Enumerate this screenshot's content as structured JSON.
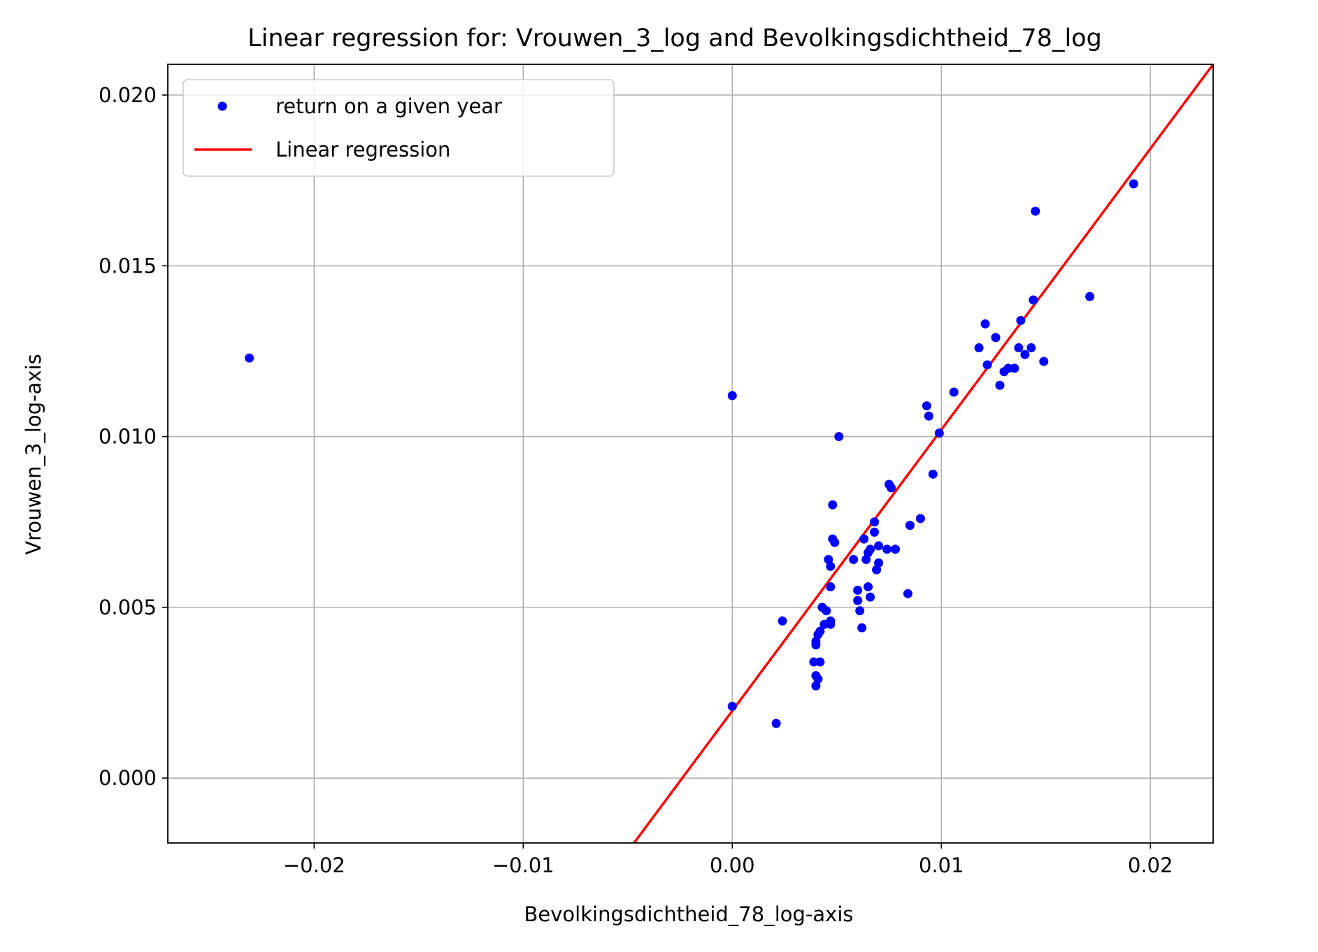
{
  "chart_data": {
    "type": "scatter",
    "title": "Linear regression for: Vrouwen_3_log and Bevolkingsdichtheid_78_log",
    "xlabel": "Bevolkingsdichtheid_78_log-axis",
    "ylabel": "Vrouwen_3_log-axis",
    "xlim": [
      -0.027,
      0.023
    ],
    "ylim": [
      -0.0019,
      0.0209
    ],
    "xticks": [
      -0.02,
      -0.01,
      0.0,
      0.01,
      0.02
    ],
    "xtick_labels": [
      "−0.02",
      "−0.01",
      "0.00",
      "0.01",
      "0.02"
    ],
    "yticks": [
      0.0,
      0.005,
      0.01,
      0.015,
      0.02
    ],
    "ytick_labels": [
      "0.000",
      "0.005",
      "0.010",
      "0.015",
      "0.020"
    ],
    "grid": true,
    "legend_position": "upper-left",
    "legend": {
      "scatter_label": "return on a given year",
      "line_label": "Linear regression"
    },
    "colors": {
      "points": "#0000ff",
      "line": "#ff0000"
    },
    "series": [
      {
        "name": "return on a given year",
        "kind": "scatter",
        "points": [
          [
            -0.0231,
            0.0123
          ],
          [
            0.0,
            0.0112
          ],
          [
            0.0,
            0.0021
          ],
          [
            0.0021,
            0.0016
          ],
          [
            0.0024,
            0.0046
          ],
          [
            0.0039,
            0.0034
          ],
          [
            0.004,
            0.0039
          ],
          [
            0.004,
            0.004
          ],
          [
            0.004,
            0.0027
          ],
          [
            0.004,
            0.003
          ],
          [
            0.0041,
            0.0029
          ],
          [
            0.0041,
            0.0042
          ],
          [
            0.0042,
            0.0034
          ],
          [
            0.0042,
            0.0043
          ],
          [
            0.0043,
            0.005
          ],
          [
            0.0044,
            0.0045
          ],
          [
            0.0045,
            0.0049
          ],
          [
            0.0046,
            0.0064
          ],
          [
            0.0047,
            0.0046
          ],
          [
            0.0047,
            0.0045
          ],
          [
            0.0047,
            0.0056
          ],
          [
            0.0047,
            0.0062
          ],
          [
            0.0048,
            0.008
          ],
          [
            0.0048,
            0.007
          ],
          [
            0.0049,
            0.0069
          ],
          [
            0.0051,
            0.01
          ],
          [
            0.0058,
            0.0064
          ],
          [
            0.006,
            0.0055
          ],
          [
            0.006,
            0.0052
          ],
          [
            0.0061,
            0.0049
          ],
          [
            0.0062,
            0.0044
          ],
          [
            0.0063,
            0.007
          ],
          [
            0.0064,
            0.0064
          ],
          [
            0.0065,
            0.0056
          ],
          [
            0.0065,
            0.0066
          ],
          [
            0.0066,
            0.0053
          ],
          [
            0.0066,
            0.0067
          ],
          [
            0.0068,
            0.0072
          ],
          [
            0.0068,
            0.0075
          ],
          [
            0.0069,
            0.0061
          ],
          [
            0.007,
            0.0068
          ],
          [
            0.007,
            0.0063
          ],
          [
            0.0074,
            0.0067
          ],
          [
            0.0075,
            0.0086
          ],
          [
            0.0076,
            0.0085
          ],
          [
            0.0078,
            0.0067
          ],
          [
            0.0084,
            0.0054
          ],
          [
            0.0085,
            0.0074
          ],
          [
            0.009,
            0.0076
          ],
          [
            0.0093,
            0.0109
          ],
          [
            0.0094,
            0.0106
          ],
          [
            0.0096,
            0.0089
          ],
          [
            0.0099,
            0.0101
          ],
          [
            0.0106,
            0.0113
          ],
          [
            0.0118,
            0.0126
          ],
          [
            0.0121,
            0.0133
          ],
          [
            0.0122,
            0.0121
          ],
          [
            0.0126,
            0.0129
          ],
          [
            0.0128,
            0.0115
          ],
          [
            0.013,
            0.0119
          ],
          [
            0.0132,
            0.012
          ],
          [
            0.0135,
            0.012
          ],
          [
            0.0137,
            0.0126
          ],
          [
            0.0138,
            0.0134
          ],
          [
            0.014,
            0.0124
          ],
          [
            0.0143,
            0.0126
          ],
          [
            0.0144,
            0.014
          ],
          [
            0.0145,
            0.0166
          ],
          [
            0.0149,
            0.0122
          ],
          [
            0.0171,
            0.0141
          ],
          [
            0.0192,
            0.0174
          ]
        ]
      },
      {
        "name": "Linear regression",
        "kind": "line",
        "points": [
          [
            -0.0047,
            -0.0019
          ],
          [
            0.023,
            0.0209
          ]
        ]
      }
    ]
  }
}
